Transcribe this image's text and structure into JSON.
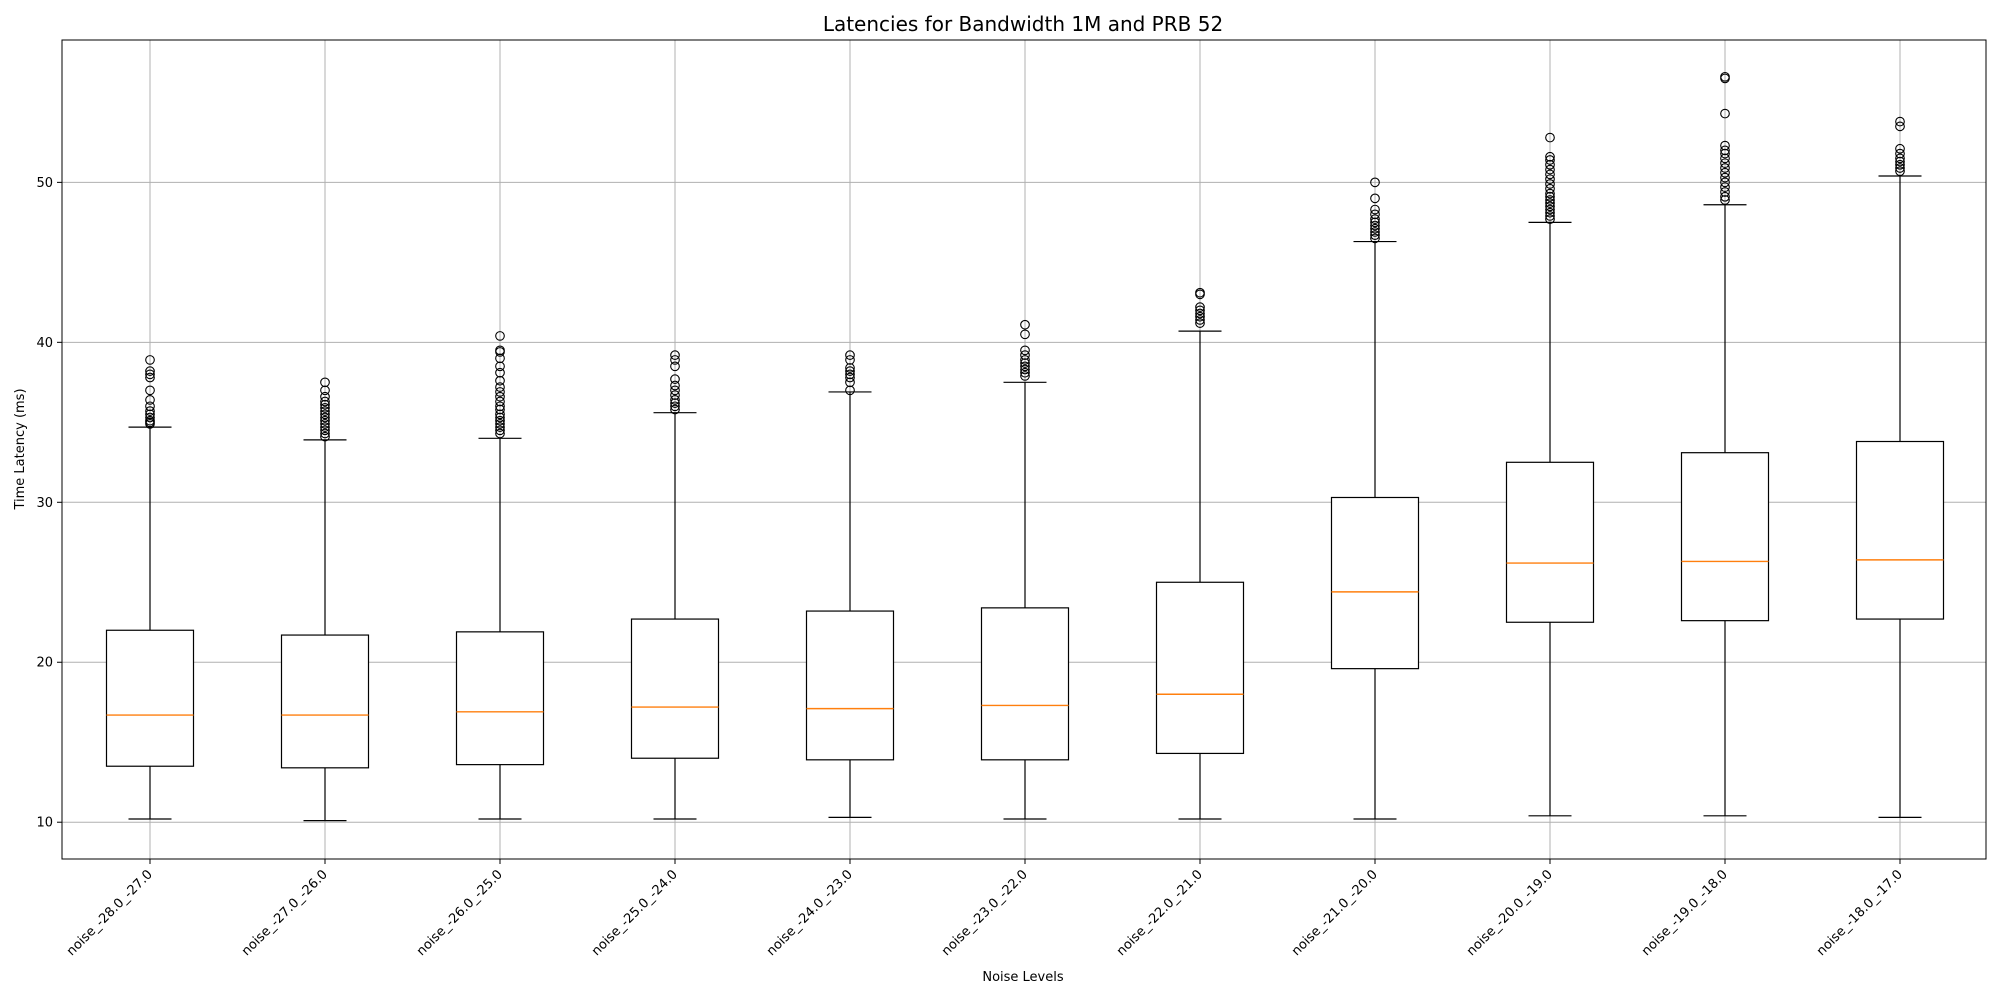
{
  "colors": {
    "box": "#000000",
    "median": "#ff7f0e",
    "grid": "#b0b0b0",
    "flier": "#000000"
  },
  "chart_data": {
    "type": "box",
    "title": "Latencies for Bandwidth 1M and PRB 52",
    "xlabel": "Noise Levels",
    "ylabel": "Time Latency (ms)",
    "ylim": [
      7.7,
      58.9
    ],
    "yticks": [
      10,
      20,
      30,
      40,
      50
    ],
    "grid": true,
    "categories": [
      "noise_-28.0_-27.0",
      "noise_-27.0_-26.0",
      "noise_-26.0_-25.0",
      "noise_-25.0_-24.0",
      "noise_-24.0_-23.0",
      "noise_-23.0_-22.0",
      "noise_-22.0_-21.0",
      "noise_-21.0_-20.0",
      "noise_-20.0_-19.0",
      "noise_-19.0_-18.0",
      "noise_-18.0_-17.0"
    ],
    "boxes": [
      {
        "whislo": 10.2,
        "q1": 13.5,
        "med": 16.7,
        "q3": 22.0,
        "whishi": 34.7,
        "fliers": [
          34.9,
          35.0,
          35.1,
          35.3,
          35.5,
          35.7,
          36.0,
          36.4,
          37.0,
          37.8,
          38.0,
          38.2,
          38.9
        ]
      },
      {
        "whislo": 10.1,
        "q1": 13.4,
        "med": 16.7,
        "q3": 21.7,
        "whishi": 33.9,
        "fliers": [
          34.1,
          34.3,
          34.5,
          34.7,
          34.9,
          35.1,
          35.3,
          35.5,
          35.7,
          35.9,
          36.1,
          36.3,
          36.6,
          37.0,
          37.5
        ]
      },
      {
        "whislo": 10.2,
        "q1": 13.6,
        "med": 16.9,
        "q3": 21.9,
        "whishi": 34.0,
        "fliers": [
          34.3,
          34.5,
          34.7,
          34.9,
          35.1,
          35.3,
          35.5,
          35.8,
          36.0,
          36.3,
          36.6,
          36.9,
          37.2,
          37.6,
          38.1,
          38.5,
          39.0,
          39.4,
          39.5,
          40.4
        ]
      },
      {
        "whislo": 10.2,
        "q1": 14.0,
        "med": 17.2,
        "q3": 22.7,
        "whishi": 35.6,
        "fliers": [
          35.8,
          36.0,
          36.2,
          36.4,
          36.7,
          37.0,
          37.3,
          37.7,
          38.5,
          38.9,
          39.2
        ]
      },
      {
        "whislo": 10.3,
        "q1": 13.9,
        "med": 17.1,
        "q3": 23.2,
        "whishi": 36.9,
        "fliers": [
          37.0,
          37.5,
          37.8,
          38.0,
          38.2,
          38.4,
          38.9,
          39.2
        ]
      },
      {
        "whislo": 10.2,
        "q1": 13.9,
        "med": 17.3,
        "q3": 23.4,
        "whishi": 37.5,
        "fliers": [
          37.9,
          38.1,
          38.3,
          38.5,
          38.7,
          38.9,
          39.2,
          39.5,
          40.5,
          41.1
        ]
      },
      {
        "whislo": 10.2,
        "q1": 14.3,
        "med": 18.0,
        "q3": 25.0,
        "whishi": 40.7,
        "fliers": [
          41.2,
          41.4,
          41.6,
          41.8,
          42.0,
          42.2,
          43.0,
          43.1
        ]
      },
      {
        "whislo": 10.2,
        "q1": 19.6,
        "med": 24.4,
        "q3": 30.3,
        "whishi": 46.3,
        "fliers": [
          46.5,
          46.7,
          46.9,
          47.1,
          47.3,
          47.5,
          47.7,
          48.0,
          48.3,
          49.0,
          50.0
        ]
      },
      {
        "whislo": 10.4,
        "q1": 22.5,
        "med": 26.2,
        "q3": 32.5,
        "whishi": 47.5,
        "fliers": [
          47.7,
          47.9,
          48.1,
          48.3,
          48.5,
          48.7,
          48.9,
          49.1,
          49.3,
          49.6,
          49.9,
          50.2,
          50.5,
          50.8,
          51.1,
          51.4,
          51.6,
          52.8
        ]
      },
      {
        "whislo": 10.4,
        "q1": 22.6,
        "med": 26.3,
        "q3": 33.1,
        "whishi": 48.6,
        "fliers": [
          48.9,
          49.1,
          49.4,
          49.7,
          50.0,
          50.3,
          50.6,
          50.9,
          51.2,
          51.5,
          51.8,
          52.0,
          52.3,
          54.3,
          56.5,
          56.6
        ]
      },
      {
        "whislo": 10.3,
        "q1": 22.7,
        "med": 26.4,
        "q3": 33.8,
        "whishi": 50.4,
        "fliers": [
          50.7,
          50.9,
          51.1,
          51.3,
          51.5,
          51.8,
          52.1,
          53.5,
          53.8
        ]
      }
    ]
  }
}
